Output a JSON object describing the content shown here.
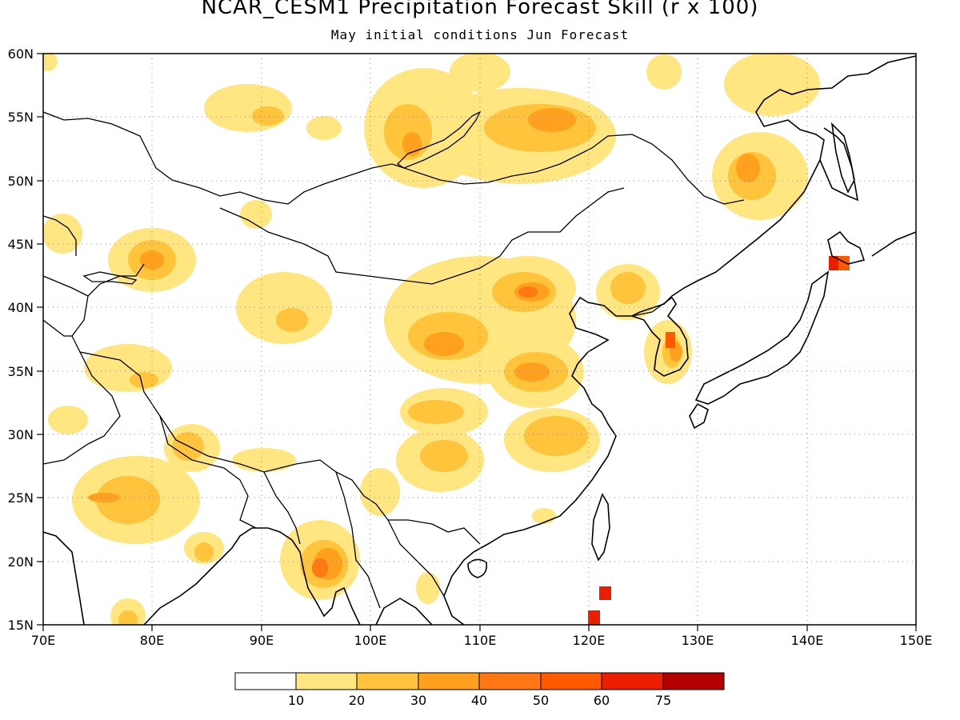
{
  "figure": {
    "title": "NCAR_CESM1 Precipitation Forecast Skill (r x 100)",
    "subtitle": "May initial conditions  Jun Forecast"
  },
  "map": {
    "lon_labels": [
      "70E",
      "80E",
      "90E",
      "100E",
      "110E",
      "120E",
      "130E",
      "140E",
      "150E"
    ],
    "lat_labels": [
      "60N",
      "55N",
      "50N",
      "45N",
      "40N",
      "35N",
      "30N",
      "25N",
      "20N",
      "15N"
    ],
    "grid": "dotted"
  },
  "colorbar": {
    "labels": [
      "10",
      "20",
      "30",
      "40",
      "50",
      "60",
      "75"
    ],
    "colors": [
      "#ffffff",
      "#ffe680",
      "#ffc33c",
      "#ffa01e",
      "#ff7814",
      "#ff5a00",
      "#eb1e00",
      "#b40000"
    ]
  }
}
